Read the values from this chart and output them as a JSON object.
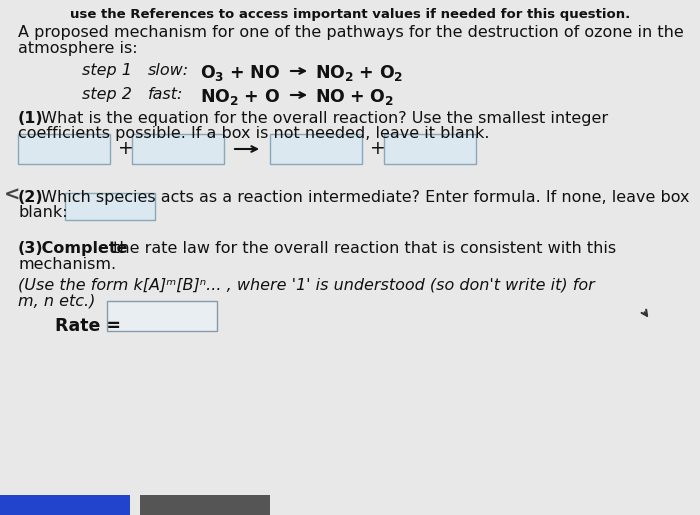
{
  "background_color": "#e8e8e8",
  "header_text": "use the References to access important values if needed for this question.",
  "intro_line1": "A proposed mechanism for one of the pathways for the destruction of ozone in the",
  "intro_line2": "atmosphere is:",
  "step1_label": "step 1",
  "step1_speed": "slow:",
  "step2_label": "step 2",
  "step2_speed": "fast:",
  "q1_bold": "(1)",
  "q1_text": " What is the equation for the overall reaction? Use the smallest integer",
  "q1_line2": "coefficients possible. If a box is not needed, leave it blank.",
  "q2_bold": "(2)",
  "q2_text": " Which species acts as a reaction intermediate? Enter formula. If none, leave box",
  "q2_line2": "blank:",
  "q3_bold": "(3)",
  "q3_text": " the rate law for the overall reaction that is consistent with this",
  "q3_line2": "mechanism.",
  "q3_italic": "(Use the form k[A]ᵐ[B]ⁿ... , where '1' is understood (so don't write it) for",
  "q3_italic2": "m, n etc.)",
  "rate_label": "Rate =",
  "box_face": "#dce8f0",
  "box_edge": "#88a8b8",
  "rate_box_face": "#e8eef2",
  "rate_box_edge": "#8899aa",
  "font_size": 11.5,
  "header_color": "#111111",
  "text_color": "#111111",
  "bottom_blue": "#2244cc",
  "bottom_gray": "#555555"
}
